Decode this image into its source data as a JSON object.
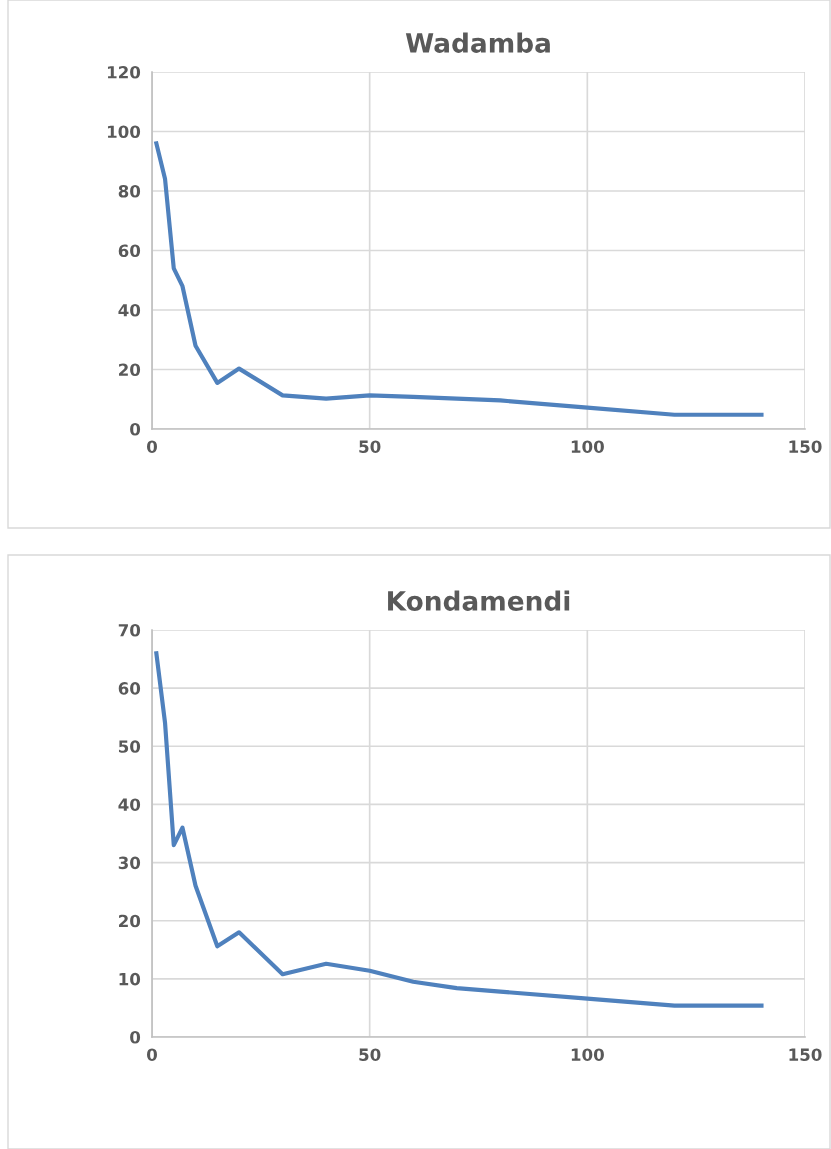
{
  "chart_data": [
    {
      "type": "line",
      "title": "Wadamba",
      "x": [
        1,
        3,
        5,
        7,
        10,
        15,
        20,
        30,
        40,
        50,
        60,
        70,
        80,
        100,
        120,
        140
      ],
      "series": [
        {
          "color": "#4f81bd",
          "values": [
            96,
            84,
            54,
            48,
            28,
            15.5,
            20.3,
            11.3,
            10.2,
            11.3,
            10.8,
            10.2,
            9.6,
            7.2,
            4.8,
            4.8
          ]
        }
      ],
      "xlim": [
        0,
        150
      ],
      "xticks": [
        0,
        50,
        100,
        150
      ],
      "ylim": [
        0,
        120
      ],
      "yticks": [
        0,
        20,
        40,
        60,
        80,
        100,
        120
      ],
      "grid": true,
      "legend": false
    },
    {
      "type": "line",
      "title": "Kondamendi",
      "x": [
        1,
        3,
        5,
        7,
        10,
        15,
        20,
        30,
        40,
        50,
        60,
        70,
        80,
        100,
        120,
        140
      ],
      "series": [
        {
          "color": "#4f81bd",
          "values": [
            66,
            54,
            33,
            36,
            26,
            15.6,
            18,
            10.8,
            12.6,
            11.4,
            9.5,
            8.4,
            7.8,
            6.6,
            5.4,
            5.4
          ]
        }
      ],
      "xlim": [
        0,
        150
      ],
      "xticks": [
        0,
        50,
        100,
        150
      ],
      "ylim": [
        0,
        70
      ],
      "yticks": [
        0,
        10,
        20,
        30,
        40,
        50,
        60,
        70
      ],
      "grid": true,
      "legend": false
    }
  ]
}
